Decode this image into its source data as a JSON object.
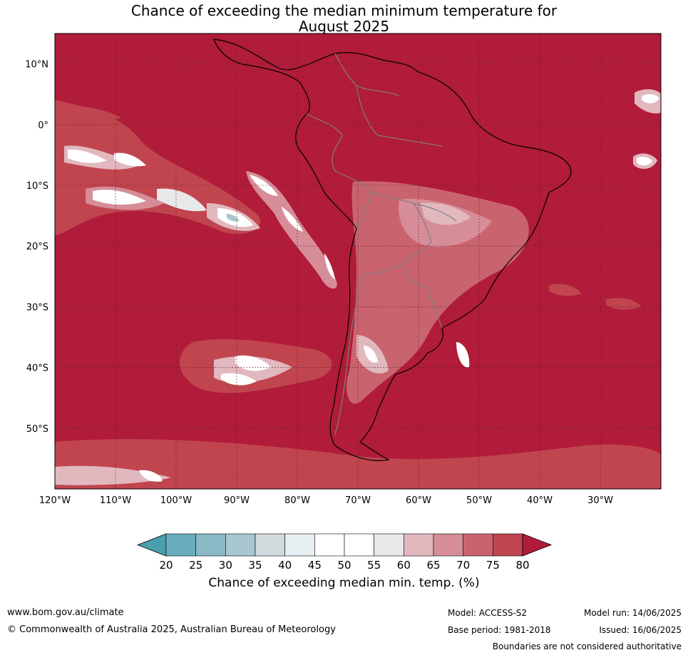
{
  "title": {
    "line1": "Chance of exceeding the median minimum temperature for",
    "line2": "August 2025"
  },
  "map": {
    "lat_labels": [
      "10°N",
      "0°",
      "10°S",
      "20°S",
      "30°S",
      "40°S",
      "50°S"
    ],
    "lon_labels": [
      "120°W",
      "110°W",
      "100°W",
      "90°W",
      "80°W",
      "70°W",
      "60°W",
      "50°W",
      "40°W",
      "30°W"
    ],
    "lon_range": [
      -120,
      -20
    ],
    "lat_range": [
      -60,
      15
    ],
    "colors": {
      "dominant": "#b01c39",
      "gridline": "#6a1f2c",
      "coastline": "#000000",
      "borders": "#808080"
    }
  },
  "colorbar": {
    "ticks": [
      "20",
      "25",
      "30",
      "35",
      "40",
      "45",
      "50",
      "55",
      "60",
      "65",
      "70",
      "75",
      "80"
    ],
    "colors": [
      "#4a9fae",
      "#6aaebe",
      "#8ab8c5",
      "#a8c6ce",
      "#d2dadd",
      "#e8eff2",
      "#ffffff",
      "#ffffff",
      "#e8e8ea",
      "#e2b8bf",
      "#d68d98",
      "#c9646f",
      "#c0454f",
      "#b01c39"
    ],
    "label": "Chance of exceeding median min. temp. (%)"
  },
  "footer": {
    "website": "www.bom.gov.au/climate",
    "copyright": "© Commonwealth of Australia 2025, Australian Bureau of Meteorology",
    "model": "Model: ACCESS-S2",
    "base_period": "Base period: 1981-2018",
    "model_run": "Model run: 14/06/2025",
    "issued": "Issued: 16/06/2025",
    "disclaimer": "Boundaries are not considered authoritative"
  }
}
